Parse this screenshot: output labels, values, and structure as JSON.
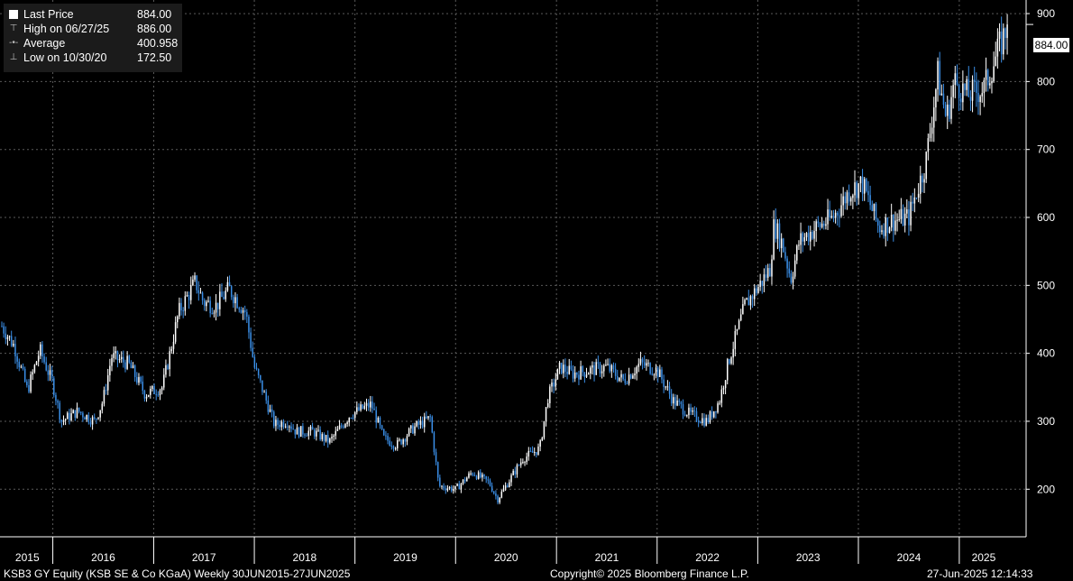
{
  "chart_data": {
    "type": "candlestick",
    "ylim": [
      130,
      920
    ],
    "yticks": [
      200,
      300,
      400,
      500,
      600,
      700,
      800,
      900
    ],
    "x_years": [
      "2015",
      "2016",
      "2017",
      "2018",
      "2019",
      "2020",
      "2021",
      "2022",
      "2023",
      "2024",
      "2025"
    ],
    "x_start": "2015-06-30",
    "x_end": "2025-06-27",
    "price_series": [
      [
        "2015-06-30",
        440
      ],
      [
        "2015-08-15",
        410
      ],
      [
        "2015-10-01",
        345
      ],
      [
        "2015-11-15",
        405
      ],
      [
        "2016-01-01",
        355
      ],
      [
        "2016-02-01",
        300
      ],
      [
        "2016-04-01",
        315
      ],
      [
        "2016-06-01",
        300
      ],
      [
        "2016-07-01",
        330
      ],
      [
        "2016-08-01",
        395
      ],
      [
        "2016-10-01",
        385
      ],
      [
        "2016-12-01",
        340
      ],
      [
        "2017-02-01",
        350
      ],
      [
        "2017-03-01",
        400
      ],
      [
        "2017-04-01",
        460
      ],
      [
        "2017-06-01",
        505
      ],
      [
        "2017-07-01",
        475
      ],
      [
        "2017-08-15",
        470
      ],
      [
        "2017-10-01",
        495
      ],
      [
        "2017-12-01",
        460
      ],
      [
        "2018-01-01",
        380
      ],
      [
        "2018-02-01",
        345
      ],
      [
        "2018-03-15",
        295
      ],
      [
        "2018-05-01",
        300
      ],
      [
        "2018-06-01",
        285
      ],
      [
        "2018-08-01",
        285
      ],
      [
        "2018-10-01",
        270
      ],
      [
        "2018-12-15",
        310
      ],
      [
        "2019-03-01",
        325
      ],
      [
        "2019-04-15",
        275
      ],
      [
        "2019-06-01",
        265
      ],
      [
        "2019-08-01",
        290
      ],
      [
        "2019-10-01",
        305
      ],
      [
        "2019-11-01",
        205
      ],
      [
        "2020-01-01",
        200
      ],
      [
        "2020-03-01",
        225
      ],
      [
        "2020-05-01",
        210
      ],
      [
        "2020-06-01",
        185
      ],
      [
        "2020-08-01",
        225
      ],
      [
        "2020-09-01",
        245
      ],
      [
        "2020-11-01",
        260
      ],
      [
        "2020-12-01",
        335
      ],
      [
        "2021-01-15",
        380
      ],
      [
        "2021-03-01",
        370
      ],
      [
        "2021-05-01",
        375
      ],
      [
        "2021-07-01",
        380
      ],
      [
        "2021-09-01",
        360
      ],
      [
        "2021-11-01",
        385
      ],
      [
        "2022-01-01",
        375
      ],
      [
        "2022-03-01",
        330
      ],
      [
        "2022-05-01",
        310
      ],
      [
        "2022-07-01",
        300
      ],
      [
        "2022-08-15",
        330
      ],
      [
        "2022-09-15",
        385
      ],
      [
        "2022-11-15",
        470
      ],
      [
        "2023-01-15",
        505
      ],
      [
        "2023-02-15",
        525
      ],
      [
        "2023-03-01",
        590
      ],
      [
        "2023-04-01",
        560
      ],
      [
        "2023-05-01",
        510
      ],
      [
        "2023-06-01",
        565
      ],
      [
        "2023-08-01",
        585
      ],
      [
        "2023-10-01",
        600
      ],
      [
        "2023-12-01",
        640
      ],
      [
        "2024-01-15",
        650
      ],
      [
        "2024-03-15",
        585
      ],
      [
        "2024-05-01",
        595
      ],
      [
        "2024-07-01",
        600
      ],
      [
        "2024-09-01",
        680
      ],
      [
        "2024-10-15",
        810
      ],
      [
        "2024-11-15",
        745
      ],
      [
        "2024-12-15",
        800
      ],
      [
        "2025-02-01",
        780
      ],
      [
        "2025-04-01",
        790
      ],
      [
        "2025-06-27",
        884
      ]
    ],
    "last_price_label": "884.00"
  },
  "legend": [
    {
      "icon": "last-price-box-icon",
      "label": "Last Price",
      "value": "884.00"
    },
    {
      "icon": "high-marker-icon",
      "label": "High on 06/27/25",
      "value": "886.00"
    },
    {
      "icon": "average-marker-icon",
      "label": "Average",
      "value": "400.958"
    },
    {
      "icon": "low-marker-icon",
      "label": "Low on 10/30/20",
      "value": "172.50"
    }
  ],
  "footer": {
    "security": "KSB3 GY Equity (KSB SE & Co KGaA)  Weekly 30JUN2015-27JUN2025",
    "copyright": "Copyright© 2025 Bloomberg Finance L.P.",
    "timestamp": "27-Jun-2025 12:14:33"
  },
  "colors": {
    "background": "#000000",
    "up_candle": "#ffffff",
    "down_candle": "#3a8ee6",
    "grid": "#5a5a5a",
    "legend_bg": "#1b1b1b"
  }
}
